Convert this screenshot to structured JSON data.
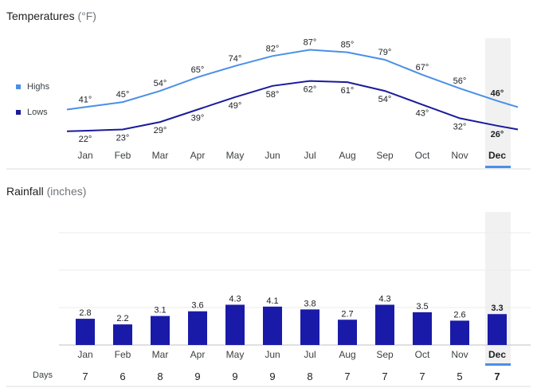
{
  "temperature": {
    "title": "Temperatures",
    "unit": "(°F)",
    "legend": {
      "highs": {
        "label": "Highs",
        "color": "#4a8fe7"
      },
      "lows": {
        "label": "Lows",
        "color": "#1a1a9c"
      }
    }
  },
  "rainfall": {
    "title": "Rainfall",
    "unit": "(inches)",
    "bar_color": "#1a1aa8"
  },
  "selected_month": "Dec",
  "days": {
    "label": "Days"
  },
  "chart_data": [
    {
      "type": "line",
      "title": "Temperatures (°F)",
      "categories": [
        "Jan",
        "Feb",
        "Mar",
        "Apr",
        "May",
        "Jun",
        "Jul",
        "Aug",
        "Sep",
        "Oct",
        "Nov",
        "Dec"
      ],
      "series": [
        {
          "name": "Highs",
          "values": [
            41,
            45,
            54,
            65,
            74,
            82,
            87,
            85,
            79,
            67,
            56,
            46
          ],
          "labels": [
            "41°",
            "45°",
            "54°",
            "65°",
            "74°",
            "82°",
            "87°",
            "85°",
            "79°",
            "67°",
            "56°",
            "46°"
          ]
        },
        {
          "name": "Lows",
          "values": [
            22,
            23,
            29,
            39,
            49,
            58,
            62,
            61,
            54,
            43,
            32,
            26
          ],
          "labels": [
            "22°",
            "23°",
            "29°",
            "39°",
            "49°",
            "58°",
            "62°",
            "61°",
            "54°",
            "43°",
            "32°",
            "26°"
          ]
        }
      ],
      "ylim": [
        15,
        95
      ]
    },
    {
      "type": "bar",
      "title": "Rainfall (inches)",
      "categories": [
        "Jan",
        "Feb",
        "Mar",
        "Apr",
        "May",
        "Jun",
        "Jul",
        "Aug",
        "Sep",
        "Oct",
        "Nov",
        "Dec"
      ],
      "values": [
        2.8,
        2.2,
        3.1,
        3.6,
        4.3,
        4.1,
        3.8,
        2.7,
        4.3,
        3.5,
        2.6,
        3.3
      ],
      "value_labels": [
        "2.8",
        "2.2",
        "3.1",
        "3.6",
        "4.3",
        "4.1",
        "3.8",
        "2.7",
        "4.3",
        "3.5",
        "2.6",
        "3.3"
      ],
      "ylim": [
        0,
        12
      ],
      "gridlines": [
        0,
        4,
        8,
        12
      ]
    },
    {
      "type": "table",
      "title": "Days",
      "categories": [
        "Jan",
        "Feb",
        "Mar",
        "Apr",
        "May",
        "Jun",
        "Jul",
        "Aug",
        "Sep",
        "Oct",
        "Nov",
        "Dec"
      ],
      "values": [
        "7",
        "6",
        "8",
        "9",
        "9",
        "9",
        "8",
        "7",
        "7",
        "7",
        "5",
        "7"
      ]
    }
  ]
}
